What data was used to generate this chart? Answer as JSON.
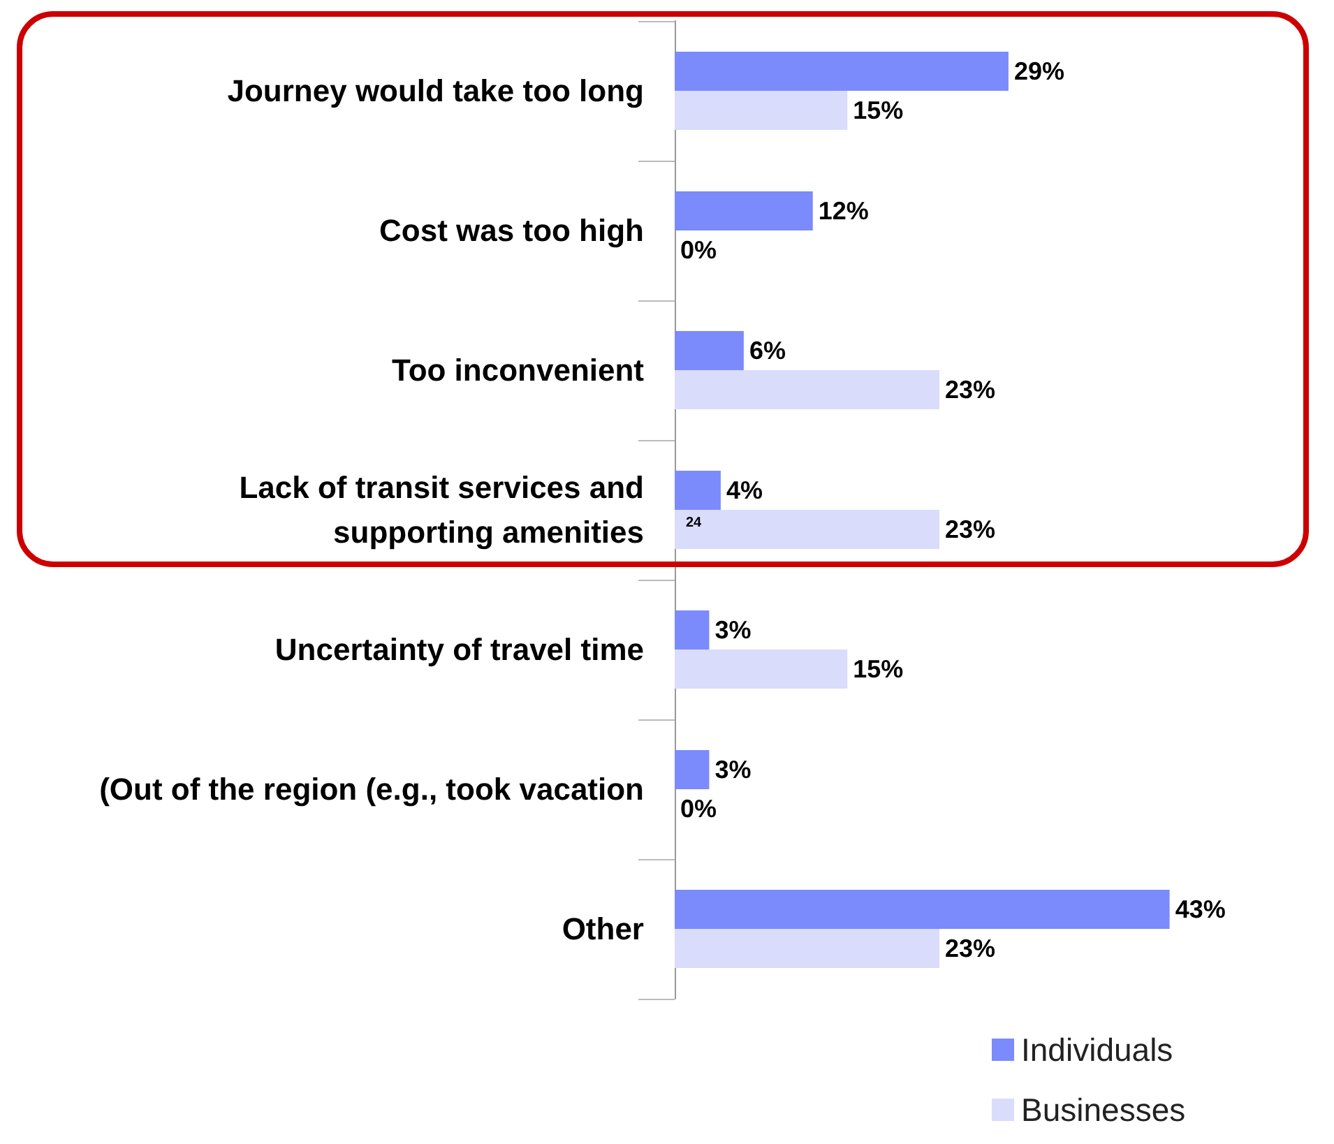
{
  "chart_data": {
    "type": "bar",
    "orientation": "horizontal",
    "categories": [
      "Journey would take too long",
      "Cost was too high",
      "Too inconvenient",
      "Lack of transit services and\nsupporting amenities",
      "Uncertainty of travel time",
      "(Out of the region (e.g., took vacation",
      "Other"
    ],
    "series": [
      {
        "name": "Individuals",
        "color": "#7b8bfb",
        "values": [
          29,
          12,
          6,
          4,
          3,
          3,
          43
        ],
        "value_labels": [
          "29%",
          "12%",
          "6%",
          "4%",
          "3%",
          "3%",
          "43%"
        ]
      },
      {
        "name": "Businesses",
        "color": "#d9dcfb",
        "values": [
          15,
          0,
          23,
          23,
          15,
          0,
          23
        ],
        "value_labels": [
          "15%",
          "0%",
          "23%",
          "23%",
          "15%",
          "0%",
          "23%"
        ]
      }
    ],
    "legend": "bottom right",
    "annotations": [
      {
        "text": "24",
        "y": "Lack of transit services and\nsupporting amenities"
      }
    ]
  }
}
